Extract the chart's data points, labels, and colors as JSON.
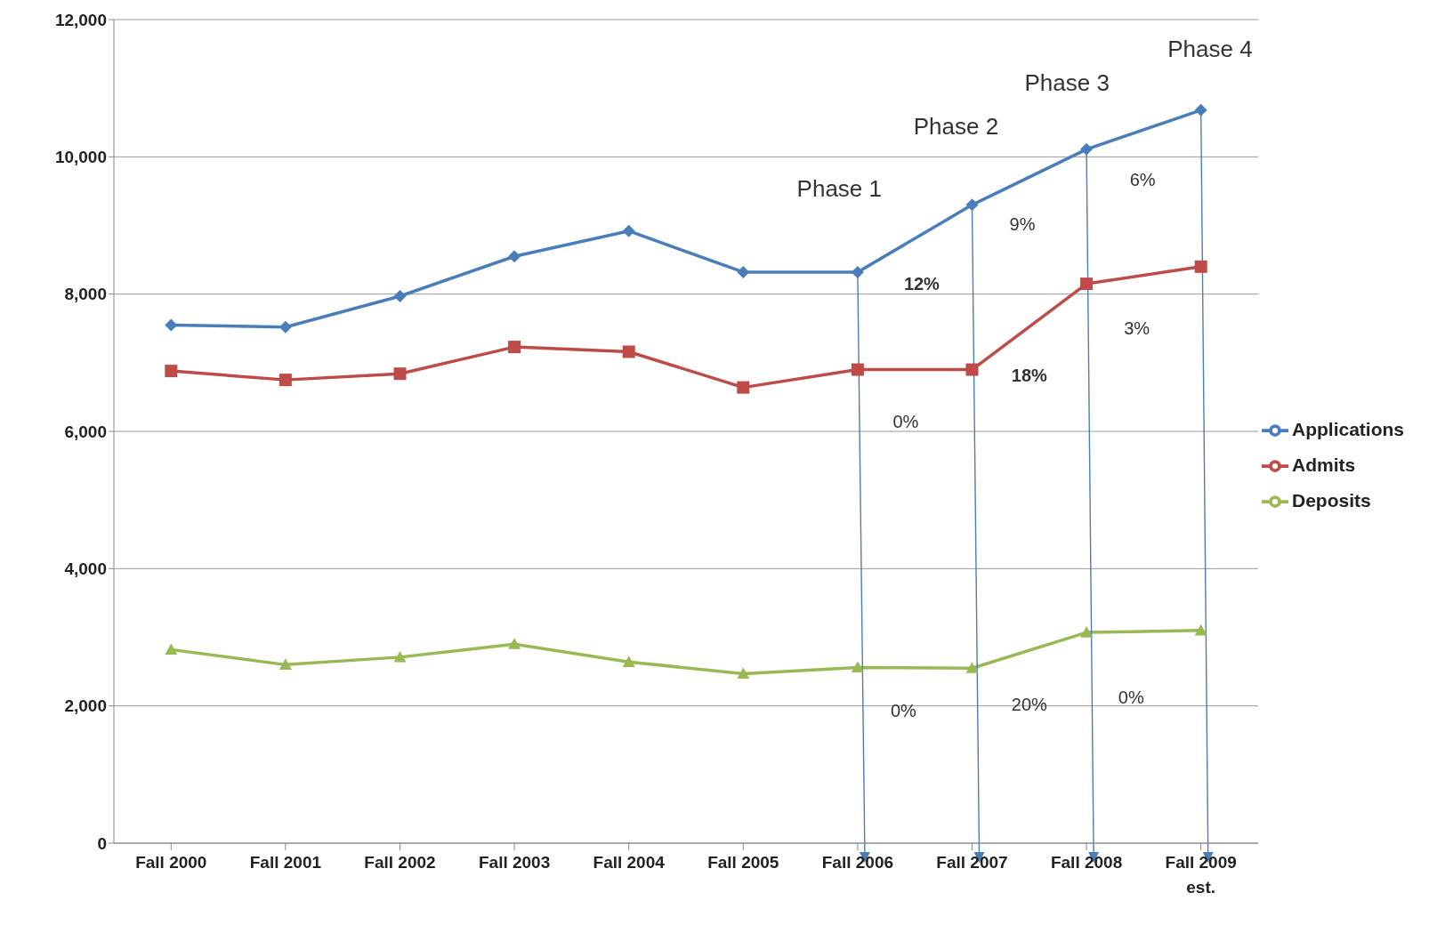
{
  "chart_data": {
    "type": "line",
    "categories": [
      "Fall 2000",
      "Fall 2001",
      "Fall 2002",
      "Fall 2003",
      "Fall 2004",
      "Fall 2005",
      "Fall 2006",
      "Fall 2007",
      "Fall 2008",
      "Fall 2009 est."
    ],
    "series": [
      {
        "name": "Applications",
        "color": "#4a7ebb",
        "marker": "diamond",
        "values": [
          7550,
          7520,
          7970,
          8550,
          8920,
          8320,
          8320,
          9300,
          10110,
          10680
        ]
      },
      {
        "name": "Admits",
        "color": "#be4b48",
        "marker": "square",
        "values": [
          6880,
          6750,
          6840,
          7230,
          7160,
          6640,
          6900,
          6900,
          8150,
          8400
        ]
      },
      {
        "name": "Deposits",
        "color": "#98b954",
        "marker": "triangle",
        "values": [
          2820,
          2600,
          2710,
          2900,
          2640,
          2470,
          2560,
          2550,
          3070,
          3100
        ]
      }
    ],
    "ylim": [
      0,
      12000
    ],
    "yticks": [
      0,
      {
        "value": 2000,
        "label": "2,000"
      },
      {
        "value": 4000,
        "label": "4,000"
      },
      {
        "value": 6000,
        "label": "6,000"
      },
      {
        "value": 8000,
        "label": "8,000"
      },
      {
        "value": 10000,
        "label": "10,000"
      },
      {
        "value": 12000,
        "label": "12,000"
      }
    ],
    "grid": "y",
    "legend": "right",
    "line_style": "solid",
    "annotations": [
      "Phase 1",
      "Phase 2",
      "Phase 3",
      "Phase 4",
      "12%",
      "0%",
      "0%",
      "9%",
      "18%",
      "20%",
      "6%",
      "3%",
      "0%"
    ]
  }
}
